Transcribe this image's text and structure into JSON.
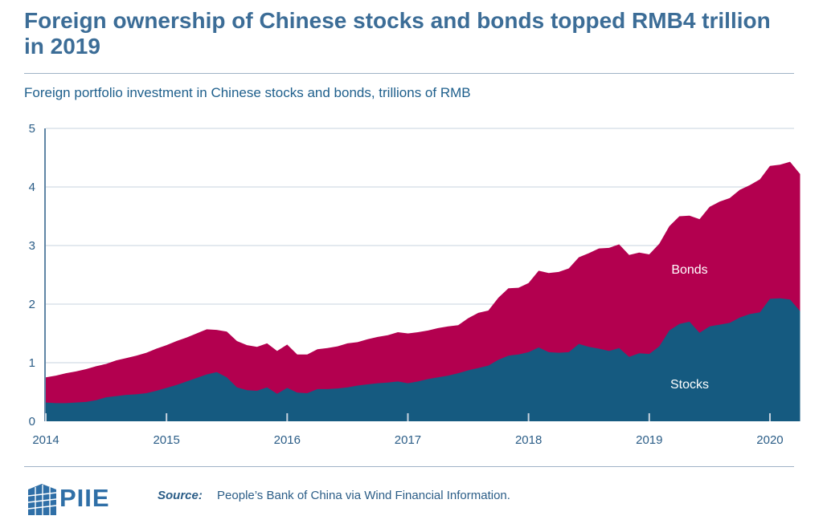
{
  "title": "Foreign ownership of Chinese stocks and bonds topped RMB4 trillion in 2019",
  "subtitle": "Foreign portfolio investment in Chinese stocks and bonds, trillions of RMB",
  "source": {
    "label": "Source:",
    "text": "People’s Bank of China via Wind Financial Information."
  },
  "logo": {
    "text": "PIIE"
  },
  "colors": {
    "stocks": "#155a80",
    "bonds": "#b3004f",
    "text": "#2b5d87",
    "grid": "#c7d3df"
  },
  "chart_data": {
    "type": "area",
    "stacked": true,
    "title": "Foreign ownership of Chinese stocks and bonds topped RMB4 trillion in 2019",
    "ylabel": "Foreign portfolio investment in Chinese stocks and bonds, trillions of RMB",
    "xlabel": "",
    "x_start": 2014,
    "x_step_months": 1,
    "ylim": [
      0,
      5
    ],
    "yticks": [
      0,
      1,
      2,
      3,
      4,
      5
    ],
    "xticks": [
      2014,
      2015,
      2016,
      2017,
      2018,
      2019,
      2020
    ],
    "xlim": [
      2014,
      2020.2
    ],
    "series": [
      {
        "name": "Stocks",
        "values": [
          0.32,
          0.31,
          0.31,
          0.32,
          0.33,
          0.36,
          0.41,
          0.43,
          0.45,
          0.46,
          0.48,
          0.52,
          0.57,
          0.62,
          0.68,
          0.74,
          0.8,
          0.84,
          0.75,
          0.58,
          0.53,
          0.52,
          0.58,
          0.47,
          0.57,
          0.49,
          0.48,
          0.55,
          0.55,
          0.56,
          0.58,
          0.61,
          0.63,
          0.65,
          0.66,
          0.68,
          0.65,
          0.68,
          0.72,
          0.75,
          0.78,
          0.82,
          0.87,
          0.91,
          0.95,
          1.05,
          1.12,
          1.14,
          1.18,
          1.26,
          1.18,
          1.17,
          1.18,
          1.32,
          1.27,
          1.24,
          1.2,
          1.25,
          1.1,
          1.16,
          1.15,
          1.28,
          1.55,
          1.66,
          1.7,
          1.51,
          1.62,
          1.65,
          1.68,
          1.77,
          1.83,
          1.86,
          2.09,
          2.1,
          2.08,
          1.88
        ]
      },
      {
        "name": "Bonds",
        "values": [
          0.43,
          0.47,
          0.51,
          0.53,
          0.56,
          0.58,
          0.57,
          0.61,
          0.63,
          0.66,
          0.69,
          0.72,
          0.73,
          0.75,
          0.75,
          0.76,
          0.77,
          0.72,
          0.78,
          0.79,
          0.77,
          0.75,
          0.75,
          0.73,
          0.74,
          0.65,
          0.66,
          0.68,
          0.7,
          0.72,
          0.75,
          0.74,
          0.77,
          0.79,
          0.81,
          0.84,
          0.85,
          0.84,
          0.83,
          0.84,
          0.84,
          0.82,
          0.89,
          0.94,
          0.94,
          1.06,
          1.15,
          1.14,
          1.18,
          1.31,
          1.35,
          1.38,
          1.43,
          1.48,
          1.6,
          1.71,
          1.76,
          1.77,
          1.74,
          1.72,
          1.7,
          1.75,
          1.78,
          1.84,
          1.81,
          1.94,
          2.04,
          2.1,
          2.13,
          2.18,
          2.2,
          2.27,
          2.27,
          2.28,
          2.35,
          2.34
        ]
      }
    ],
    "annotations": [
      "Bonds",
      "Stocks"
    ]
  }
}
